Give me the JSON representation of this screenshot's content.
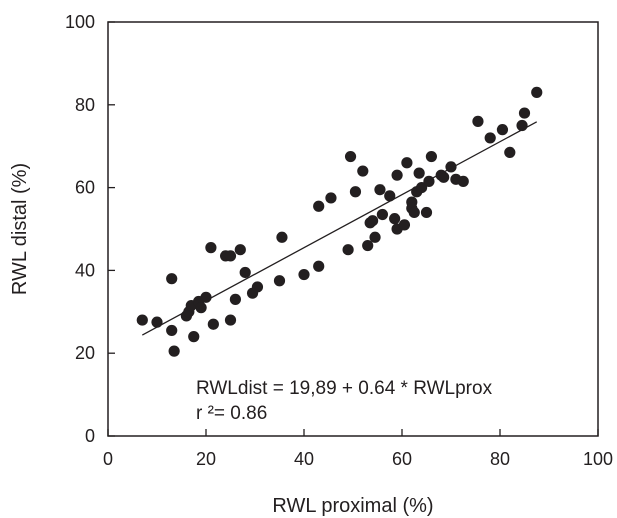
{
  "chart_data": {
    "type": "scatter",
    "title": "",
    "xlabel": "RWL proximal (%)",
    "ylabel": "RWL distal (%)",
    "xlim": [
      0,
      100
    ],
    "ylim": [
      0,
      100
    ],
    "xticks": [
      0,
      20,
      40,
      60,
      80,
      100
    ],
    "yticks": [
      0,
      20,
      40,
      60,
      80,
      100
    ],
    "grid": false,
    "legend": "none",
    "marker_color": "#231f20",
    "points": [
      [
        7,
        28
      ],
      [
        10,
        27.5
      ],
      [
        13,
        38
      ],
      [
        13,
        25.5
      ],
      [
        13.5,
        20.5
      ],
      [
        16,
        29
      ],
      [
        16.5,
        30
      ],
      [
        17,
        31.5
      ],
      [
        17.5,
        24
      ],
      [
        18.5,
        32.5
      ],
      [
        19,
        31
      ],
      [
        20,
        33.5
      ],
      [
        21,
        45.5
      ],
      [
        21.5,
        27
      ],
      [
        24,
        43.5
      ],
      [
        25,
        43.5
      ],
      [
        25,
        28
      ],
      [
        26,
        33
      ],
      [
        27,
        45
      ],
      [
        28,
        39.5
      ],
      [
        29.5,
        34.5
      ],
      [
        30.5,
        36
      ],
      [
        35,
        37.5
      ],
      [
        35.5,
        48
      ],
      [
        40,
        39
      ],
      [
        43,
        55.5
      ],
      [
        43,
        41
      ],
      [
        45.5,
        57.5
      ],
      [
        49,
        45
      ],
      [
        49.5,
        67.5
      ],
      [
        50.5,
        59
      ],
      [
        52,
        64
      ],
      [
        53,
        46
      ],
      [
        53.5,
        51.5
      ],
      [
        54,
        52
      ],
      [
        54.5,
        48
      ],
      [
        55.5,
        59.5
      ],
      [
        56,
        53.5
      ],
      [
        57.5,
        58
      ],
      [
        58.5,
        52.5
      ],
      [
        59,
        50
      ],
      [
        59,
        63
      ],
      [
        60.5,
        51
      ],
      [
        61,
        66
      ],
      [
        62,
        56.5
      ],
      [
        62,
        55
      ],
      [
        62.5,
        54
      ],
      [
        63,
        59
      ],
      [
        63.5,
        63.5
      ],
      [
        64,
        60
      ],
      [
        65,
        54
      ],
      [
        65.5,
        61.5
      ],
      [
        66,
        67.5
      ],
      [
        68,
        63
      ],
      [
        68.5,
        62.5
      ],
      [
        70,
        65
      ],
      [
        71,
        62
      ],
      [
        72.5,
        61.5
      ],
      [
        75.5,
        76
      ],
      [
        78,
        72
      ],
      [
        80.5,
        74
      ],
      [
        82,
        68.5
      ],
      [
        84.5,
        75
      ],
      [
        85,
        78
      ],
      [
        87.5,
        83
      ]
    ],
    "fit_line": {
      "intercept": 19.89,
      "slope": 0.64,
      "x_range": [
        7,
        87.5
      ]
    },
    "annotation": {
      "equation": "RWLdist = 19,89 + 0.64 * RWLprox",
      "r_squared": "r ²= 0.86"
    }
  }
}
